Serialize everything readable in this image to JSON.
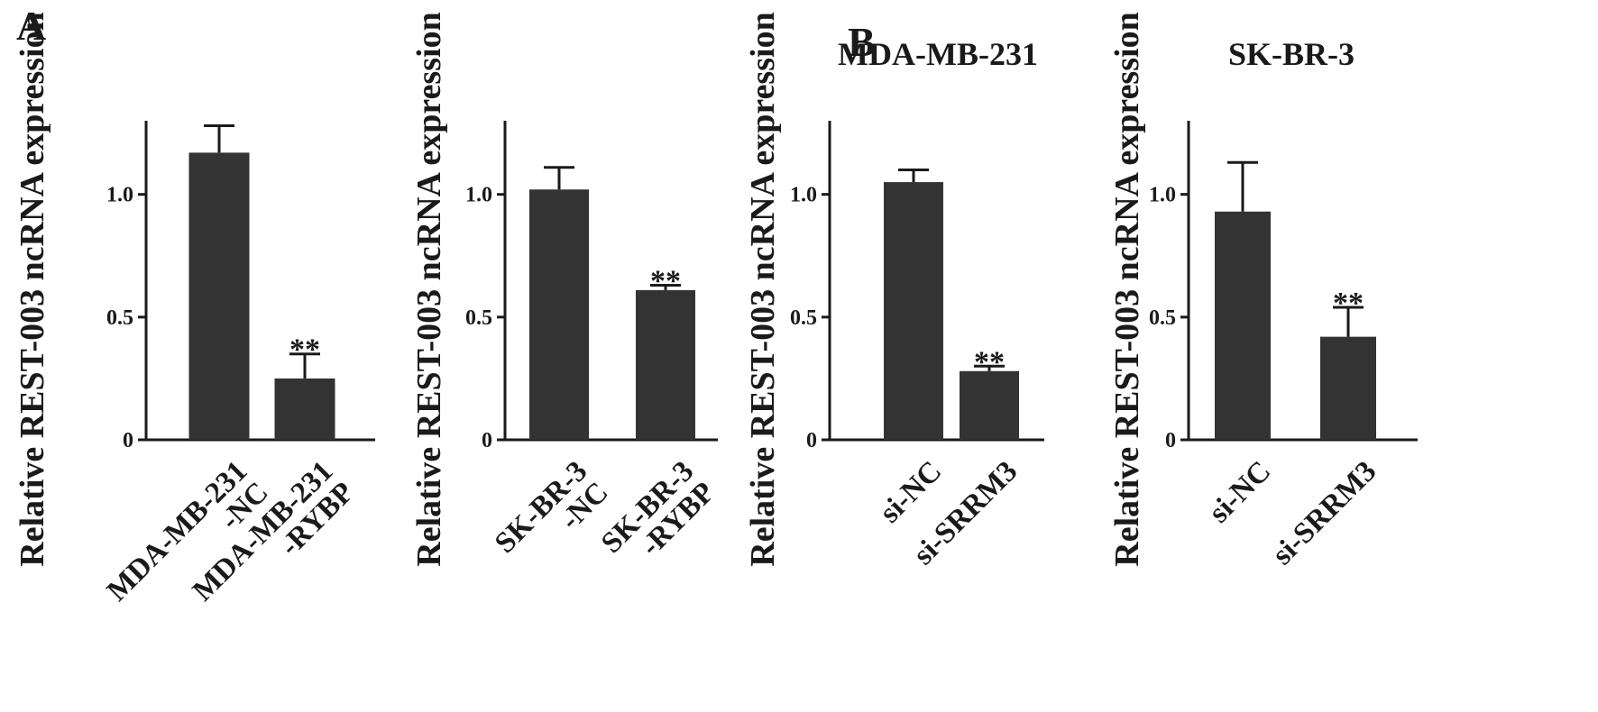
{
  "panel_letters": [
    "A",
    "B"
  ],
  "colors": {
    "bar": "#333333",
    "axis": "#1a1a1a",
    "text": "#1a1a1a"
  },
  "chart_data": [
    {
      "type": "bar",
      "panel": "A",
      "title": "",
      "ylabel": "Relative REST-003 ncRNA expression",
      "ylim": [
        0,
        1.3
      ],
      "yticks": [
        "0",
        "0.5",
        "1.0"
      ],
      "categories": [
        "MDA-MB-231\n-NC",
        "MDA-MB-231\n-RYBP"
      ],
      "values": [
        1.17,
        0.25
      ],
      "errors": [
        0.11,
        0.1
      ],
      "significance": [
        "",
        "**"
      ]
    },
    {
      "type": "bar",
      "panel": "",
      "title": "",
      "ylabel": "Relative REST-003 ncRNA expression",
      "ylim": [
        0,
        1.3
      ],
      "yticks": [
        "0",
        "0.5",
        "1.0"
      ],
      "categories": [
        "SK-BR-3\n-NC",
        "SK-BR-3\n-RYBP"
      ],
      "values": [
        1.02,
        0.61
      ],
      "errors": [
        0.09,
        0.02
      ],
      "significance": [
        "",
        "**"
      ]
    },
    {
      "type": "bar",
      "panel": "B",
      "title": "MDA-MB-231",
      "ylabel": "Relative REST-003 ncRNA expression",
      "ylim": [
        0,
        1.3
      ],
      "yticks": [
        "0",
        "0.5",
        "1.0"
      ],
      "categories": [
        "si-NC",
        "si-SRRM3"
      ],
      "values": [
        1.05,
        0.28
      ],
      "errors": [
        0.05,
        0.02
      ],
      "significance": [
        "",
        "**"
      ]
    },
    {
      "type": "bar",
      "panel": "",
      "title": "SK-BR-3",
      "ylabel": "Relative REST-003 ncRNA expression",
      "ylim": [
        0,
        1.3
      ],
      "yticks": [
        "0",
        "0.5",
        "1.0"
      ],
      "categories": [
        "si-NC",
        "si-SRRM3"
      ],
      "values": [
        0.93,
        0.42
      ],
      "errors": [
        0.2,
        0.12
      ],
      "significance": [
        "",
        "**"
      ]
    }
  ]
}
